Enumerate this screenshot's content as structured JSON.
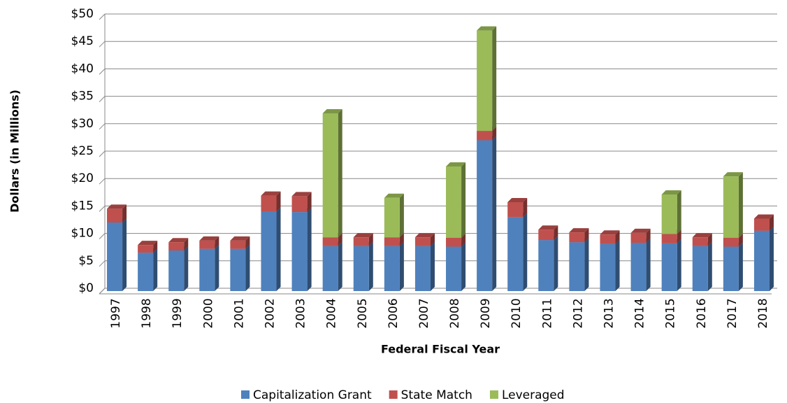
{
  "chart_data": {
    "type": "bar",
    "stacked": true,
    "y_axis_label": "Dollars (in Millions)",
    "x_axis_label": "Federal Fiscal Year",
    "categories": [
      "1997",
      "1998",
      "1999",
      "2000",
      "2001",
      "2002",
      "2003",
      "2004",
      "2005",
      "2006",
      "2007",
      "2008",
      "2009",
      "2010",
      "2011",
      "2012",
      "2013",
      "2014",
      "2015",
      "2016",
      "2017",
      "2018"
    ],
    "series": [
      {
        "name": "Capitalization Grant",
        "color": "#4f81bd",
        "values": [
          12.5,
          7,
          7.4,
          7.7,
          7.7,
          14.5,
          14.4,
          8.2,
          8.2,
          8.2,
          8.2,
          8.1,
          27.5,
          13.5,
          9.3,
          8.9,
          8.6,
          8.8,
          8.7,
          8.2,
          8.1,
          11
        ]
      },
      {
        "name": "State Match",
        "color": "#c0504d",
        "values": [
          2.5,
          1.4,
          1.5,
          1.5,
          1.5,
          2.9,
          2.9,
          1.6,
          1.6,
          1.6,
          1.6,
          1.6,
          1.7,
          2.7,
          1.9,
          1.8,
          1.7,
          1.8,
          1.7,
          1.6,
          1.6,
          2.2
        ]
      },
      {
        "name": "Leveraged",
        "color": "#9bbb59",
        "values": [
          0,
          0,
          0,
          0,
          0,
          0,
          0,
          22.6,
          0,
          7.2,
          0,
          13,
          18.3,
          0,
          0,
          0,
          0,
          0,
          7.2,
          0,
          11.2,
          0
        ]
      }
    ],
    "ylim": [
      0,
      50
    ],
    "yticks": [
      {
        "value": 0,
        "label": "$0"
      },
      {
        "value": 5,
        "label": "$5"
      },
      {
        "value": 10,
        "label": "$10"
      },
      {
        "value": 15,
        "label": "$15"
      },
      {
        "value": 20,
        "label": "$20"
      },
      {
        "value": 25,
        "label": "$25"
      },
      {
        "value": 30,
        "label": "$30"
      },
      {
        "value": 35,
        "label": "$35"
      },
      {
        "value": 40,
        "label": "$40"
      },
      {
        "value": 45,
        "label": "$45"
      },
      {
        "value": 50,
        "label": "$50"
      }
    ],
    "grid": true,
    "legend": "bottom"
  }
}
